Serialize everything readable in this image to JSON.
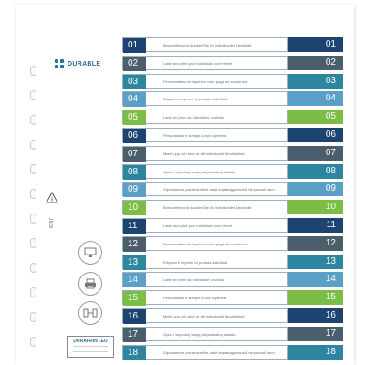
{
  "brand": {
    "name": "DURABLE",
    "color": "#2b6ea0"
  },
  "product_code": "6797",
  "website": {
    "label": "DURAPRINT.EU"
  },
  "icons": [
    "recycle-icon",
    "computer-icon",
    "printer-icon",
    "scissors-icon"
  ],
  "colors": {
    "navy": "#1d4470",
    "slate": "#4c5e6c",
    "teal": "#2d85a0",
    "sky": "#5aa0c6",
    "green": "#7cbd45"
  },
  "tabs": [
    {
      "number": "01",
      "text": "Beschriften und drucken Sie Ihr individuelles Deckblatt",
      "color": "#1d4470"
    },
    {
      "number": "02",
      "text": "Label and print your individual cover sheet",
      "color": "#4c5e6c"
    },
    {
      "number": "03",
      "text": "Personnalisez et imprimez votre page de couverture",
      "color": "#2d85a0"
    },
    {
      "number": "04",
      "text": "Etiqueta e imprime tu portada individual",
      "color": "#5aa0c6"
    },
    {
      "number": "05",
      "text": "Label en print uw individuele voorblad",
      "color": "#7cbd45"
    },
    {
      "number": "06",
      "text": "Personalizza e stampa la tua copertina",
      "color": "#1d4470"
    },
    {
      "number": "07",
      "text": "Mærk upp och skriv ut ditt individuella försättsblad",
      "color": "#4c5e6c"
    },
    {
      "number": "08",
      "text": "Opisz i wydrukuj swoją indywidualną okładkę",
      "color": "#2d85a0"
    },
    {
      "number": "09",
      "text": "Оформите и распечатайте свой индивидуальный титульный лист",
      "color": "#5aa0c6"
    },
    {
      "number": "10",
      "text": "Beschriften und drucken Sie Ihr individuelles Deckblatt",
      "color": "#7cbd45"
    },
    {
      "number": "11",
      "text": "Label and print your individual cover sheet",
      "color": "#1d4470"
    },
    {
      "number": "12",
      "text": "Personnalisez et imprimez votre page de couverture",
      "color": "#4c5e6c"
    },
    {
      "number": "13",
      "text": "Etiqueta e imprime tu portada individual",
      "color": "#2d85a0"
    },
    {
      "number": "14",
      "text": "Label en print uw individuele voorblad",
      "color": "#5aa0c6"
    },
    {
      "number": "15",
      "text": "Personalizza e stampa la tua copertina",
      "color": "#7cbd45"
    },
    {
      "number": "16",
      "text": "Mærk upp och skriv ut ditt individuella försättsblad",
      "color": "#1d4470"
    },
    {
      "number": "17",
      "text": "Opisz i wydrukuj swoją indywidualną okładkę",
      "color": "#4c5e6c"
    },
    {
      "number": "18",
      "text": "Оформите и распечатайте свой индивидуальный титульный лист",
      "color": "#2d85a0"
    }
  ]
}
